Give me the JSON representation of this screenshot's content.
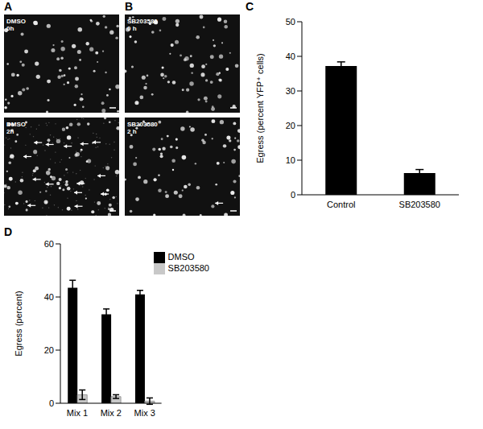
{
  "panels": [
    {
      "label": "A",
      "images": [
        {
          "lines": [
            "DMSO",
            "0h"
          ]
        },
        {
          "lines": [
            "DMSO",
            "2h"
          ]
        }
      ]
    },
    {
      "label": "B",
      "images": [
        {
          "lines": [
            "SB203580",
            "0 h"
          ]
        },
        {
          "lines": [
            "SB203580",
            "2 h"
          ]
        }
      ]
    }
  ],
  "chart_data": [
    {
      "panel": "C",
      "type": "bar",
      "categories": [
        "Control",
        "SB203580"
      ],
      "values": [
        37.2,
        6.3
      ],
      "errors": [
        1.2,
        1.0
      ],
      "color": "#000000",
      "y_label": "Egress (percent YFP⁺ cells)",
      "ylim": [
        0,
        50
      ],
      "yticks": [
        0,
        10,
        20,
        30,
        40,
        50
      ],
      "grid": false
    },
    {
      "panel": "D",
      "type": "bar",
      "categories": [
        "Mix 1",
        "Mix 2",
        "Mix 3"
      ],
      "series": [
        {
          "name": "DMSO",
          "color": "#000000",
          "values": [
            43.5,
            33.5,
            41
          ],
          "errors": [
            2.8,
            2.0,
            1.5
          ]
        },
        {
          "name": "SB203580",
          "color": "#c8c8c8",
          "values": [
            3.2,
            2.5,
            0.8
          ],
          "errors": [
            1.8,
            0.7,
            1.2
          ]
        }
      ],
      "y_label": "Egress (percent)",
      "ylim": [
        0,
        60
      ],
      "yticks": [
        0,
        20,
        40,
        60
      ],
      "grid": false,
      "legend": "upper right"
    }
  ]
}
